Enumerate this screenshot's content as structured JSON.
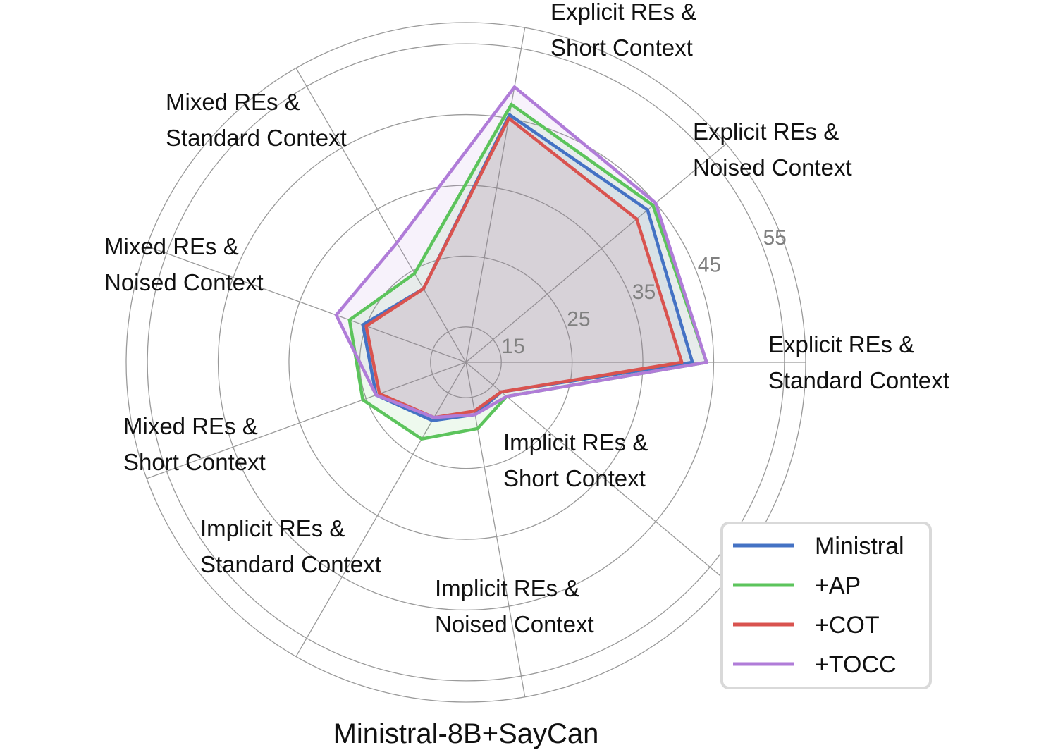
{
  "chart_data": {
    "type": "radar",
    "title": "Ministral-8B+SayCan",
    "r_ticks": [
      15,
      25,
      35,
      45,
      55
    ],
    "rlim": [
      10,
      58
    ],
    "grid": true,
    "legend_position": "bottom-right",
    "categories": [
      [
        "Explicit REs &",
        "Standard Context"
      ],
      [
        "Explicit REs &",
        "Noised Context"
      ],
      [
        "Explicit REs &",
        "Short Context"
      ],
      [
        "Mixed REs &",
        "Standard Context"
      ],
      [
        "Mixed REs &",
        "Noised Context"
      ],
      [
        "Mixed REs &",
        "Short Context"
      ],
      [
        "Implicit REs &",
        "Standard Context"
      ],
      [
        "Implicit REs &",
        "Noised Context"
      ],
      [
        "Implicit REs &",
        "Short Context"
      ]
    ],
    "series": [
      {
        "name": "Ministral",
        "color": "#4472c4",
        "values": [
          42.0,
          43.5,
          45.5,
          22.0,
          25.5,
          23.5,
          19.5,
          17.5,
          16.5
        ]
      },
      {
        "name": "+AP",
        "color": "#5cc45c",
        "values": [
          44.0,
          44.5,
          47.0,
          24.5,
          27.5,
          25.5,
          22.5,
          19.5,
          17.5
        ]
      },
      {
        "name": "+COT",
        "color": "#d9534f",
        "values": [
          40.5,
          41.5,
          45.0,
          22.0,
          25.0,
          23.0,
          19.0,
          17.0,
          16.5
        ]
      },
      {
        "name": "+TOCC",
        "color": "#b07cd8",
        "values": [
          44.0,
          45.0,
          49.5,
          29.5,
          29.5,
          23.5,
          19.0,
          17.5,
          17.5
        ]
      }
    ]
  }
}
